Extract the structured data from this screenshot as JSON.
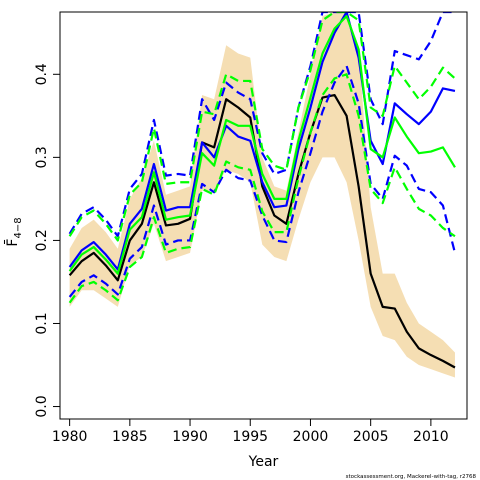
{
  "chart_data": {
    "type": "line",
    "title": "",
    "xlabel": "Year",
    "ylabel": "F̄",
    "ylabel_sub": "4−8",
    "xlim": [
      1979.2,
      2013
    ],
    "ylim": [
      -0.015,
      0.475
    ],
    "xticks": [
      1980,
      1985,
      1990,
      1995,
      2000,
      2005,
      2010
    ],
    "yticks": [
      0.0,
      0.1,
      0.2,
      0.3,
      0.4
    ],
    "ytick_labels": [
      "0.0",
      "0.1",
      "0.2",
      "0.3",
      "0.4"
    ],
    "grid": false,
    "legend": "none",
    "x": [
      1980,
      1981,
      1982,
      1983,
      1984,
      1985,
      1986,
      1987,
      1988,
      1989,
      1990,
      1991,
      1992,
      1993,
      1994,
      1995,
      1996,
      1997,
      1998,
      1999,
      2000,
      2001,
      2002,
      2003,
      2004,
      2005,
      2006,
      2007,
      2008,
      2009,
      2010,
      2011,
      2012
    ],
    "band": {
      "color": "#f5deb3",
      "upper": [
        0.19,
        0.215,
        0.225,
        0.21,
        0.19,
        0.25,
        0.275,
        0.32,
        0.255,
        0.26,
        0.265,
        0.375,
        0.37,
        0.435,
        0.425,
        0.42,
        0.3,
        0.265,
        0.26,
        0.33,
        0.4,
        0.47,
        0.475,
        0.475,
        0.43,
        0.24,
        0.16,
        0.16,
        0.125,
        0.1,
        0.09,
        0.08,
        0.065
      ],
      "lower": [
        0.12,
        0.14,
        0.14,
        0.13,
        0.12,
        0.17,
        0.18,
        0.22,
        0.175,
        0.18,
        0.185,
        0.26,
        0.26,
        0.285,
        0.28,
        0.27,
        0.195,
        0.18,
        0.175,
        0.225,
        0.27,
        0.3,
        0.3,
        0.27,
        0.2,
        0.12,
        0.085,
        0.08,
        0.06,
        0.05,
        0.045,
        0.04,
        0.035
      ]
    },
    "series": [
      {
        "color": "#000000",
        "dash": "solid",
        "width": 2.2,
        "values": [
          0.158,
          0.175,
          0.185,
          0.17,
          0.152,
          0.2,
          0.22,
          0.27,
          0.218,
          0.22,
          0.226,
          0.318,
          0.312,
          0.37,
          0.36,
          0.348,
          0.265,
          0.23,
          0.22,
          0.28,
          0.33,
          0.372,
          0.375,
          0.35,
          0.265,
          0.16,
          0.12,
          0.118,
          0.09,
          0.07,
          0.062,
          0.055,
          0.047
        ]
      },
      {
        "color": "#0000ff",
        "dash": "solid",
        "width": 2.2,
        "values": [
          0.168,
          0.188,
          0.198,
          0.183,
          0.165,
          0.22,
          0.238,
          0.292,
          0.236,
          0.24,
          0.24,
          0.318,
          0.3,
          0.338,
          0.325,
          0.32,
          0.27,
          0.24,
          0.242,
          0.31,
          0.36,
          0.415,
          0.45,
          0.475,
          0.42,
          0.32,
          0.292,
          0.365,
          0.352,
          0.34,
          0.355,
          0.383,
          0.38
        ]
      },
      {
        "color": "#00ff00",
        "dash": "solid",
        "width": 2.2,
        "values": [
          0.163,
          0.183,
          0.192,
          0.177,
          0.16,
          0.213,
          0.228,
          0.282,
          0.225,
          0.228,
          0.23,
          0.305,
          0.29,
          0.345,
          0.338,
          0.338,
          0.28,
          0.25,
          0.25,
          0.32,
          0.372,
          0.425,
          0.455,
          0.47,
          0.43,
          0.31,
          0.3,
          0.348,
          0.325,
          0.305,
          0.307,
          0.312,
          0.288
        ]
      },
      {
        "color": "#0000ff",
        "dash": "dash",
        "width": 2.2,
        "values": [
          0.208,
          0.232,
          0.24,
          0.225,
          0.205,
          0.262,
          0.28,
          0.345,
          0.278,
          0.28,
          0.278,
          0.37,
          0.345,
          0.39,
          0.378,
          0.37,
          0.305,
          0.28,
          0.285,
          0.36,
          0.41,
          0.475,
          0.475,
          0.475,
          0.475,
          0.37,
          0.34,
          0.428,
          0.423,
          0.418,
          0.44,
          0.475,
          0.475
        ]
      },
      {
        "color": "#0000ff",
        "dash": "dash",
        "width": 2.2,
        "values": [
          0.132,
          0.15,
          0.158,
          0.148,
          0.135,
          0.178,
          0.192,
          0.242,
          0.195,
          0.2,
          0.2,
          0.268,
          0.258,
          0.285,
          0.275,
          0.272,
          0.23,
          0.2,
          0.198,
          0.258,
          0.305,
          0.355,
          0.39,
          0.41,
          0.365,
          0.268,
          0.25,
          0.302,
          0.29,
          0.262,
          0.258,
          0.242,
          0.185
        ]
      },
      {
        "color": "#00ff00",
        "dash": "dash",
        "width": 2.2,
        "values": [
          0.205,
          0.228,
          0.236,
          0.22,
          0.2,
          0.255,
          0.27,
          0.335,
          0.268,
          0.27,
          0.27,
          0.355,
          0.352,
          0.4,
          0.392,
          0.392,
          0.31,
          0.29,
          0.285,
          0.36,
          0.405,
          0.465,
          0.475,
          0.475,
          0.465,
          0.36,
          0.35,
          0.41,
          0.39,
          0.37,
          0.385,
          0.408,
          0.395
        ]
      },
      {
        "color": "#00ff00",
        "dash": "dash",
        "width": 2.2,
        "values": [
          0.125,
          0.145,
          0.15,
          0.14,
          0.128,
          0.168,
          0.18,
          0.228,
          0.185,
          0.19,
          0.192,
          0.262,
          0.255,
          0.295,
          0.288,
          0.285,
          0.235,
          0.21,
          0.21,
          0.275,
          0.33,
          0.375,
          0.395,
          0.4,
          0.35,
          0.262,
          0.245,
          0.288,
          0.262,
          0.238,
          0.23,
          0.215,
          0.205
        ]
      }
    ]
  },
  "footnote": "stockassessment.org, Mackerel-with-tag, r2768"
}
